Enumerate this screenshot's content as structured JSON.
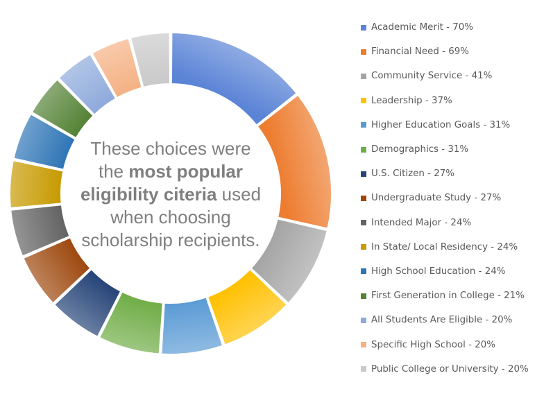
{
  "chart_data": {
    "type": "pie",
    "subtype": "donut",
    "series": [
      {
        "label": "Academic Merit - 70%",
        "value": 70,
        "color": "#5b84d6"
      },
      {
        "label": "Financial Need - 69%",
        "value": 69,
        "color": "#ed7d31"
      },
      {
        "label": "Community Service - 41%",
        "value": 41,
        "color": "#a5a5a5"
      },
      {
        "label": "Leadership - 37%",
        "value": 37,
        "color": "#ffc000"
      },
      {
        "label": "Higher Education Goals - 31%",
        "value": 31,
        "color": "#5b9bd5"
      },
      {
        "label": "Demographics - 31%",
        "value": 31,
        "color": "#70ad47"
      },
      {
        "label": "U.S. Citizen - 27%",
        "value": 27,
        "color": "#264478"
      },
      {
        "label": "Undergraduate Study - 27%",
        "value": 27,
        "color": "#9e480e"
      },
      {
        "label": "Intended Major - 24%",
        "value": 24,
        "color": "#636363"
      },
      {
        "label": "In State/ Local Residency - 24%",
        "value": 24,
        "color": "#c79a00"
      },
      {
        "label": "High School Education - 24%",
        "value": 24,
        "color": "#2e75b6"
      },
      {
        "label": "First Generation in College - 21%",
        "value": 21,
        "color": "#548235"
      },
      {
        "label": "All Students Are Eligible - 20%",
        "value": 20,
        "color": "#8eaadb"
      },
      {
        "label": "Specific High School - 20%",
        "value": 20,
        "color": "#f4b183"
      },
      {
        "label": "Public College or University - 20%",
        "value": 20,
        "color": "#c9c9c9"
      }
    ],
    "legend_position": "right",
    "center_text": {
      "line1": "These choices were",
      "line2_pre": "the ",
      "line2_bold": "most popular",
      "line3_bold": "eligibility citeria",
      "line3_post": " used",
      "line4": "when choosing",
      "line5": "scholarship recipients."
    }
  }
}
